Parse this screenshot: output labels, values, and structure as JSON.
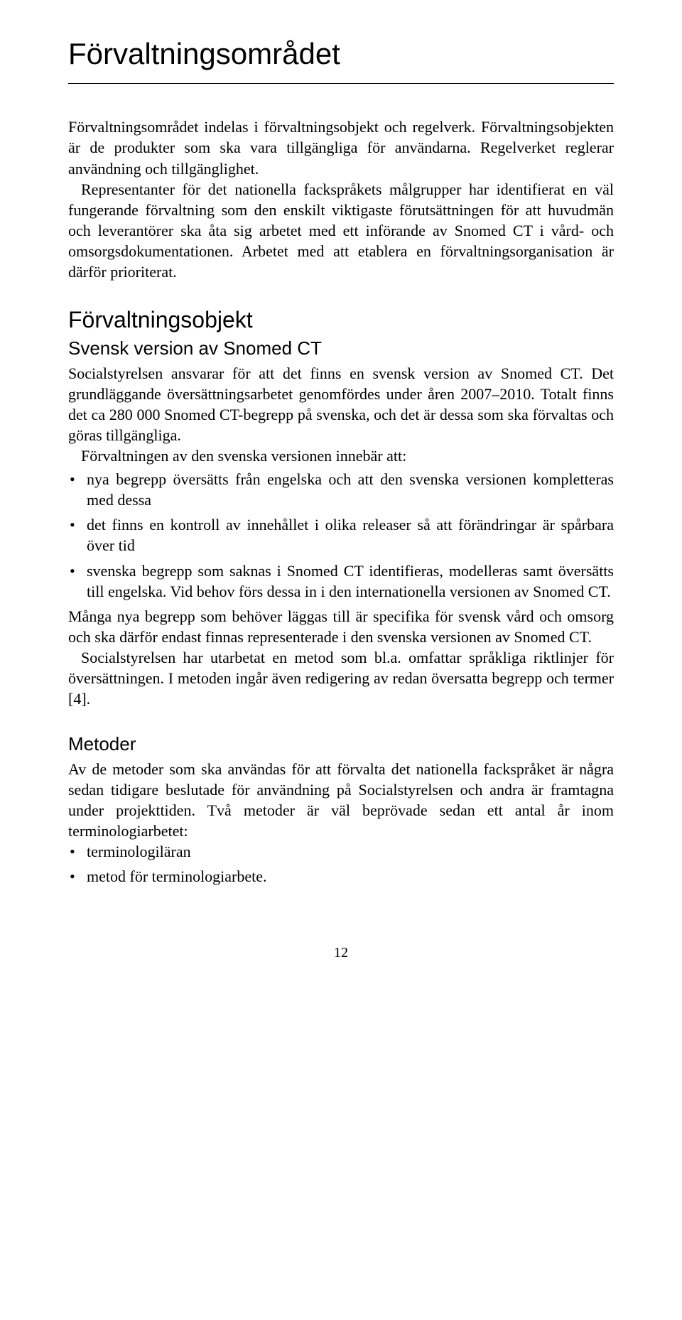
{
  "title": "Förvaltningsområdet",
  "intro_p1": "Förvaltningsområdet indelas i förvaltningsobjekt och regelverk. Förvaltningsobjekten är de produkter som ska vara tillgängliga för användarna. Regelverket reglerar användning och tillgänglighet.",
  "intro_p2": "Representanter för det nationella fackspråkets målgrupper har identifierat en väl fungerande förvaltning som den enskilt viktigaste förutsättningen för att huvudmän och leverantörer ska åta sig arbetet med ett införande av Snomed CT i vård- och omsorgsdokumentationen. Arbetet med att etablera en förvaltningsorganisation är därför prioriterat.",
  "section1_heading": "Förvaltningsobjekt",
  "section1_sub": "Svensk version av Snomed CT",
  "s1_p1": "Socialstyrelsen ansvarar för att det finns en svensk version av Snomed CT. Det grundläggande översättningsarbetet genomfördes under åren 2007–2010. Totalt finns det ca 280 000 Snomed CT-begrepp på svenska, och det är dessa som ska förvaltas och göras tillgängliga.",
  "s1_p2": "Förvaltningen av den svenska versionen innebär att:",
  "s1_bullets": [
    "nya begrepp översätts från engelska och att den svenska versionen kompletteras med dessa",
    "det finns en kontroll av innehållet i olika releaser så att förändringar är spårbara över tid",
    "svenska begrepp som saknas i Snomed CT identifieras, modelleras samt översätts till engelska. Vid behov förs dessa in i den internationella versionen av Snomed CT."
  ],
  "s1_p3": "Många nya begrepp som behöver läggas till är specifika för svensk vård och omsorg och ska därför endast finnas representerade i den svenska versionen av Snomed CT.",
  "s1_p4": "Socialstyrelsen har utarbetat en metod som bl.a. omfattar språkliga riktlinjer för översättningen. I metoden ingår även redigering av redan översatta begrepp och termer [4].",
  "section2_heading": "Metoder",
  "s2_p1": "Av de metoder som ska användas för att förvalta det nationella fackspråket är några sedan tidigare beslutade för användning på Socialstyrelsen och andra är framtagna under projekttiden. Två metoder är väl beprövade sedan ett antal år inom terminologiarbetet:",
  "s2_bullets": [
    "terminologiläran",
    "metod för terminologiarbete."
  ],
  "page_number": "12"
}
